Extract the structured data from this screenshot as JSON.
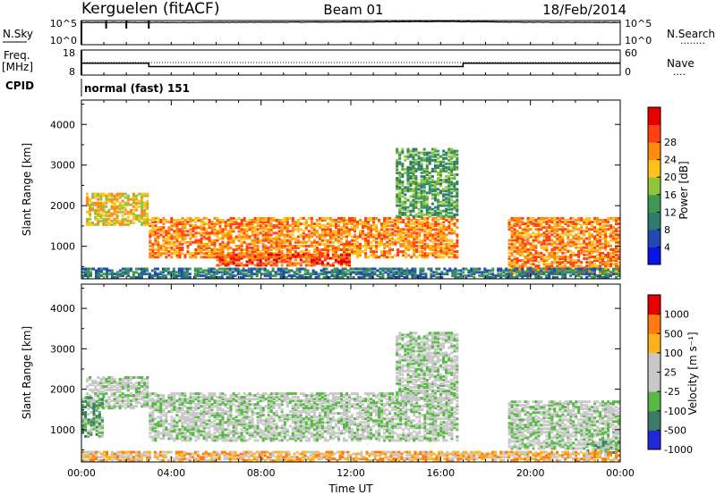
{
  "header": {
    "station": "Kerguelen (fitACF)",
    "beam": "Beam 01",
    "date": "18/Feb/2014"
  },
  "panel_labels": {
    "nsky": "N.Sky",
    "nsearch": "N.Search",
    "nsearch_marker": "........",
    "freq": "Freq.",
    "freq_unit": "[MHz]",
    "nave": "Nave",
    "nave_marker": "....",
    "cpid": "CPID",
    "cpid_value": "normal (fast) 151",
    "ysky_hi": "10^5",
    "ysky_lo": "10^0",
    "freq_hi": "18",
    "freq_lo": "8",
    "nave_hi": "60",
    "nave_lo": "0"
  },
  "chart_data": [
    {
      "type": "line",
      "name": "N.Sky / N.Search",
      "y_axis": [
        "10^0",
        "10^5"
      ],
      "x": [
        "00:00",
        "04:00",
        "08:00",
        "12:00",
        "16:00",
        "20:00",
        "00:00"
      ],
      "series": [
        {
          "values_log10": [
            4.6,
            4.6,
            4.65,
            4.7,
            4.8,
            4.65,
            4.6
          ]
        }
      ],
      "spikes_hours": [
        1.1,
        2.0,
        3.0
      ]
    },
    {
      "type": "line",
      "name": "Freq / Nave",
      "freq_ylim": [
        8,
        18
      ],
      "nave_ylim": [
        0,
        60
      ],
      "freq_steps": [
        {
          "start": 0.0,
          "end": 3.0,
          "value": 12.7
        },
        {
          "start": 3.0,
          "end": 17.0,
          "value": 11.4
        },
        {
          "start": 17.0,
          "end": 24.0,
          "value": 12.7
        }
      ],
      "nave_dotted": 30
    },
    {
      "type": "heatmap",
      "title": "Power",
      "xlabel": "Time UT",
      "ylabel": "Slant Range [km]",
      "colorbar_label": "Power [dB]",
      "colorbar_ticks": [
        "4",
        "8",
        "12",
        "16",
        "20",
        "24",
        "28"
      ],
      "colorbar_colors": [
        "#0a14e6",
        "#1f4ab3",
        "#2f7a6e",
        "#3f9a4f",
        "#8fc63a",
        "#ffc21a",
        "#ff8a10",
        "#ff4010",
        "#e60000"
      ],
      "ylim": [
        200,
        4600
      ],
      "yticks": [
        1000,
        2000,
        3000,
        4000
      ],
      "xlim": [
        0,
        24
      ],
      "xticks": [
        "00:00",
        "04:00",
        "08:00",
        "12:00",
        "16:00",
        "20:00",
        "00:00"
      ],
      "bands": [
        {
          "t0": 0.2,
          "t1": 3.0,
          "r0": 1500,
          "r1": 2300,
          "level": 5
        },
        {
          "t0": 3.0,
          "t1": 16.8,
          "r0": 700,
          "r1": 1700,
          "level": 6
        },
        {
          "t0": 6.0,
          "t1": 12.0,
          "r0": 500,
          "r1": 800,
          "level": 7
        },
        {
          "t0": 14.0,
          "t1": 16.8,
          "r0": 1700,
          "r1": 3400,
          "level": 3
        },
        {
          "t0": 19.0,
          "t1": 24.0,
          "r0": 300,
          "r1": 1700,
          "level": 6
        },
        {
          "t0": 0.0,
          "t1": 24.0,
          "r0": 200,
          "r1": 450,
          "level": 2
        }
      ]
    },
    {
      "type": "heatmap",
      "title": "Velocity",
      "xlabel": "Time UT",
      "ylabel": "Slant Range [km]",
      "colorbar_label": "Velocity [m s⁻¹]",
      "colorbar_ticks": [
        "1000",
        "500",
        "100",
        "25",
        "-25",
        "-100",
        "-500",
        "-1000"
      ],
      "colorbar_colors": [
        "#2028d8",
        "#3c7a6a",
        "#58b844",
        "#c8c8c8",
        "#c8c8c8",
        "#ffb21a",
        "#ff7a10",
        "#e60000"
      ],
      "ylim": [
        200,
        4600
      ],
      "yticks": [
        1000,
        2000,
        3000,
        4000
      ],
      "xlim": [
        0,
        24
      ],
      "xticks": [
        "00:00",
        "04:00",
        "08:00",
        "12:00",
        "16:00",
        "20:00",
        "00:00"
      ],
      "bands": [
        {
          "t0": 0.2,
          "t1": 3.0,
          "r0": 1500,
          "r1": 2300,
          "level": 3
        },
        {
          "t0": 3.0,
          "t1": 16.8,
          "r0": 700,
          "r1": 1900,
          "level": 3
        },
        {
          "t0": 14.0,
          "t1": 16.8,
          "r0": 1700,
          "r1": 3400,
          "level": 3
        },
        {
          "t0": 19.0,
          "t1": 24.0,
          "r0": 500,
          "r1": 1700,
          "level": 3
        },
        {
          "t0": 0.0,
          "t1": 1.0,
          "r0": 800,
          "r1": 1800,
          "level": 2
        },
        {
          "t0": 22.5,
          "t1": 24.0,
          "r0": 400,
          "r1": 700,
          "level": 2
        },
        {
          "t0": 0.0,
          "t1": 24.0,
          "r0": 200,
          "r1": 450,
          "level": 5
        }
      ]
    }
  ]
}
